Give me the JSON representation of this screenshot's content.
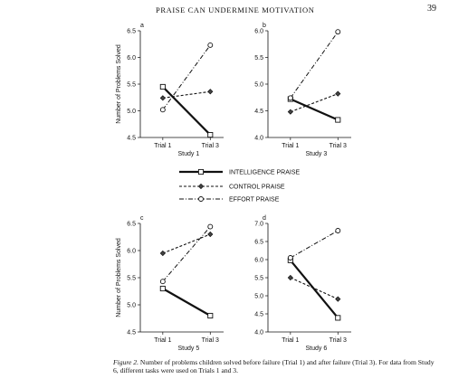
{
  "header": {
    "running_head": "PRAISE CAN UNDERMINE MOTIVATION",
    "page_number": "39"
  },
  "caption": {
    "lead": "Figure 2.",
    "text": "Number of problems children solved before failure (Trial 1) and after failure (Trial 3). For data from Study 6, different tasks were used on Trials 1 and 3."
  },
  "legend": [
    {
      "label": "INTELLIGENCE PRAISE",
      "style": "solid",
      "marker": "square"
    },
    {
      "label": "CONTROL PRAISE",
      "style": "dashed",
      "marker": "diamond"
    },
    {
      "label": "EFFORT PRAISE",
      "style": "dashdot",
      "marker": "circle"
    }
  ],
  "chart_data": [
    {
      "type": "line",
      "panel": "a",
      "title": "Study 1",
      "ylabel": "Number of Problems Solved",
      "categories": [
        "Trial 1",
        "Trial 3"
      ],
      "ylim": [
        4.5,
        6.5
      ],
      "yticks": [
        "4.5",
        "5.0",
        "5.5",
        "6.0",
        "6.5"
      ],
      "series": [
        {
          "name": "INTELLIGENCE PRAISE",
          "values": [
            5.45,
            4.55
          ]
        },
        {
          "name": "CONTROL PRAISE",
          "values": [
            5.24,
            5.36
          ]
        },
        {
          "name": "EFFORT PRAISE",
          "values": [
            5.02,
            6.23
          ]
        }
      ]
    },
    {
      "type": "line",
      "panel": "b",
      "title": "Study 3",
      "ylabel": "",
      "categories": [
        "Trial 1",
        "Trial 3"
      ],
      "ylim": [
        4.0,
        6.0
      ],
      "yticks": [
        "4.0",
        "4.5",
        "5.0",
        "5.5",
        "6.0"
      ],
      "series": [
        {
          "name": "INTELLIGENCE PRAISE",
          "values": [
            4.72,
            4.33
          ]
        },
        {
          "name": "CONTROL PRAISE",
          "values": [
            4.48,
            4.82
          ]
        },
        {
          "name": "EFFORT PRAISE",
          "values": [
            4.74,
            5.98
          ]
        }
      ]
    },
    {
      "type": "line",
      "panel": "c",
      "title": "Study 5",
      "ylabel": "Number of Problems Solved",
      "categories": [
        "Trial 1",
        "Trial 3"
      ],
      "ylim": [
        4.5,
        6.5
      ],
      "yticks": [
        "4.5",
        "5.0",
        "5.5",
        "6.0",
        "6.5"
      ],
      "series": [
        {
          "name": "INTELLIGENCE PRAISE",
          "values": [
            5.3,
            4.8
          ]
        },
        {
          "name": "CONTROL PRAISE",
          "values": [
            5.95,
            6.3
          ]
        },
        {
          "name": "EFFORT PRAISE",
          "values": [
            5.43,
            6.44
          ]
        }
      ]
    },
    {
      "type": "line",
      "panel": "d",
      "title": "Study 6",
      "ylabel": "",
      "categories": [
        "Trial 1",
        "Trial 3"
      ],
      "ylim": [
        4.0,
        7.0
      ],
      "yticks": [
        "4.0",
        "4.5",
        "5.0",
        "5.5",
        "6.0",
        "6.5",
        "7.0"
      ],
      "series": [
        {
          "name": "INTELLIGENCE PRAISE",
          "values": [
            5.98,
            4.39
          ]
        },
        {
          "name": "CONTROL PRAISE",
          "values": [
            5.5,
            4.91
          ]
        },
        {
          "name": "EFFORT PRAISE",
          "values": [
            6.05,
            6.8
          ]
        }
      ]
    }
  ]
}
